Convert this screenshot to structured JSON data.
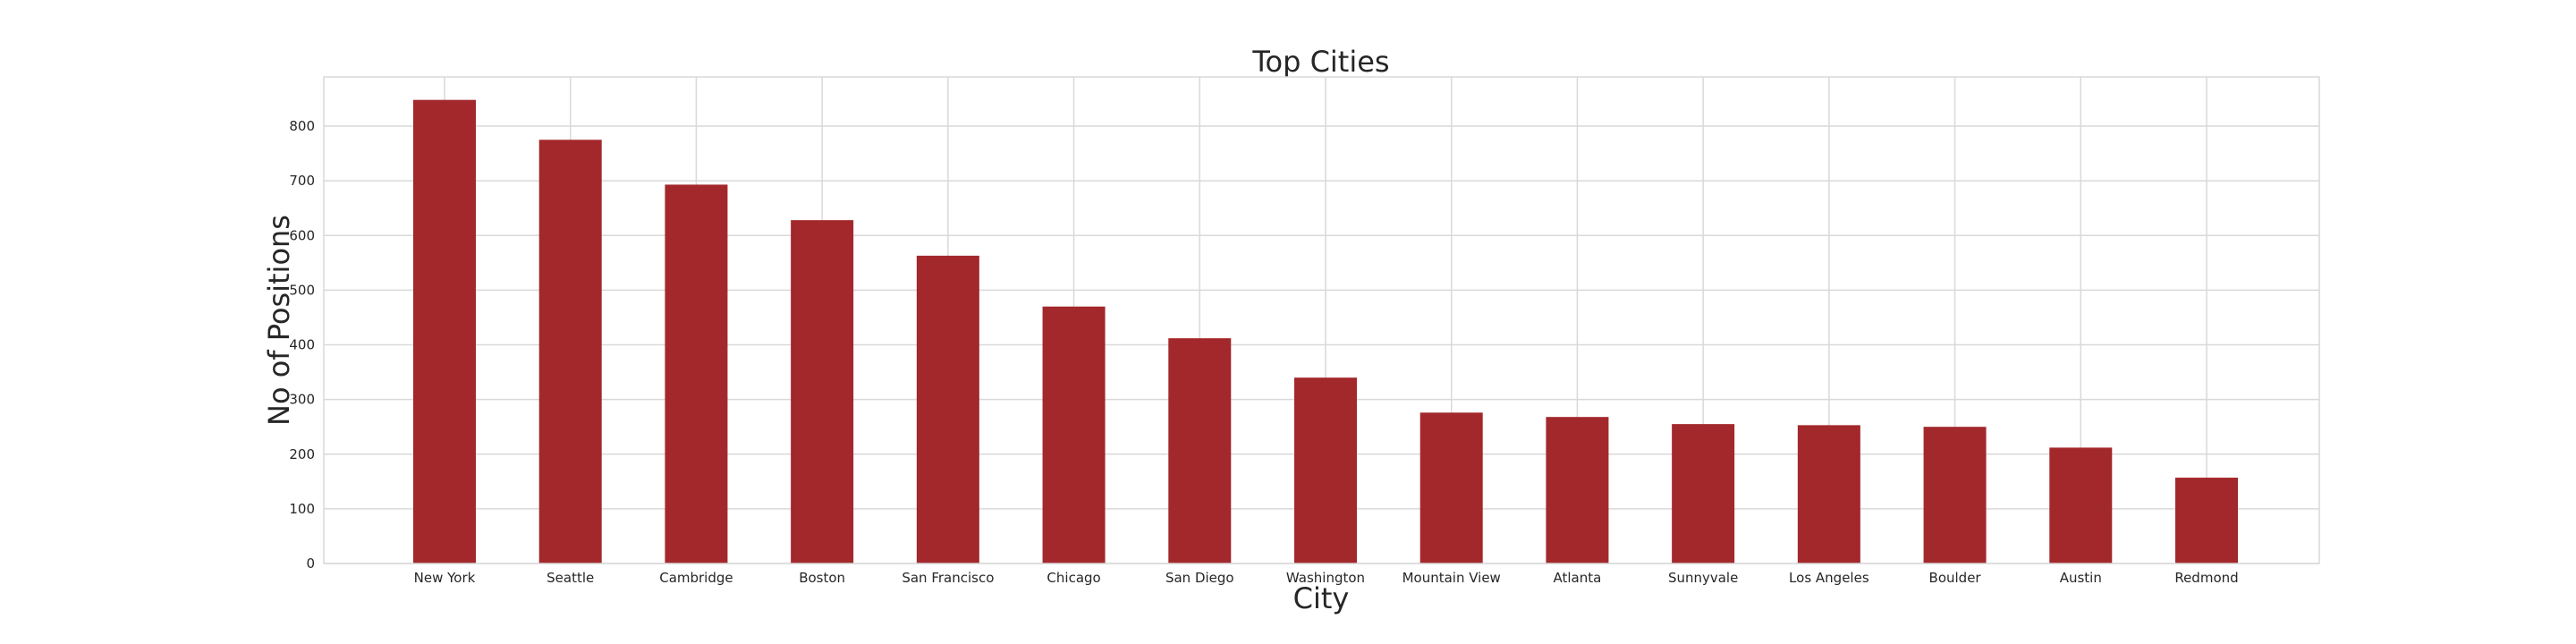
{
  "chart_data": {
    "type": "bar",
    "title": "Top Cities",
    "xlabel": "City",
    "ylabel": "No of Positions",
    "categories": [
      "New York",
      "Seattle",
      "Cambridge",
      "Boston",
      "San Francisco",
      "Chicago",
      "San Diego",
      "Washington",
      "Mountain View",
      "Atlanta",
      "Sunnyvale",
      "Los Angeles",
      "Boulder",
      "Austin",
      "Redmond"
    ],
    "values": [
      848,
      775,
      693,
      628,
      563,
      470,
      412,
      340,
      276,
      268,
      255,
      253,
      250,
      212,
      157
    ],
    "ylim": [
      0,
      890
    ],
    "yticks": [
      0,
      100,
      200,
      300,
      400,
      500,
      600,
      700,
      800
    ],
    "grid": true,
    "bar_color": "#a3282b",
    "grid_color": "#d9d9d9",
    "legend": "none"
  }
}
